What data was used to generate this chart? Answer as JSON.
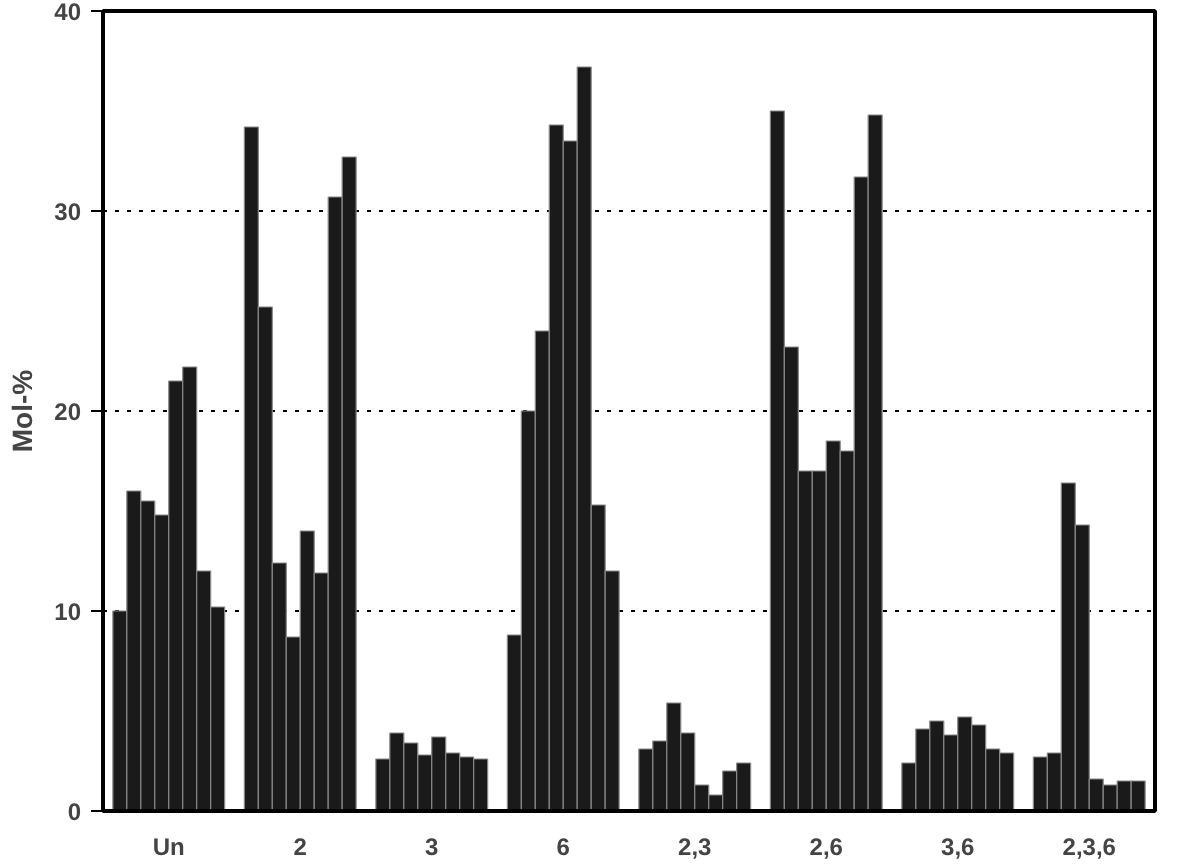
{
  "chart_data": {
    "type": "bar",
    "ylabel": "Mol-%",
    "categories": [
      "Un",
      "2",
      "3",
      "6",
      "2,3",
      "2,6",
      "3,6",
      "2,3,6"
    ],
    "series": [
      {
        "color": "#1a1a1a",
        "values": [
          10,
          34.2,
          2.6,
          8.8,
          3.1,
          35,
          2.4,
          2.7
        ]
      },
      {
        "color": "#1a1a1a",
        "values": [
          16,
          25.2,
          3.9,
          20,
          3.5,
          23.2,
          4.1,
          2.9
        ]
      },
      {
        "color": "#1a1a1a",
        "values": [
          15.5,
          12.4,
          3.4,
          24,
          5.4,
          17,
          4.5,
          16.4
        ]
      },
      {
        "color": "#1a1a1a",
        "values": [
          14.8,
          8.7,
          2.8,
          34.3,
          3.9,
          17,
          3.8,
          14.3
        ]
      },
      {
        "color": "#1a1a1a",
        "values": [
          21.5,
          14,
          3.7,
          33.5,
          1.3,
          18.5,
          4.7,
          1.6
        ]
      },
      {
        "color": "#1a1a1a",
        "values": [
          22.2,
          11.9,
          2.9,
          37.2,
          0.8,
          18,
          4.3,
          1.3
        ]
      },
      {
        "color": "#1a1a1a",
        "values": [
          12,
          30.7,
          2.7,
          15.3,
          2,
          31.7,
          3.1,
          1.5
        ]
      },
      {
        "color": "#1a1a1a",
        "values": [
          10.2,
          32.7,
          2.6,
          12,
          2.4,
          34.8,
          2.9,
          1.5
        ]
      }
    ],
    "ylim": [
      0,
      40
    ],
    "yticks": [
      0,
      10,
      20,
      30,
      40
    ],
    "grid": "y"
  }
}
